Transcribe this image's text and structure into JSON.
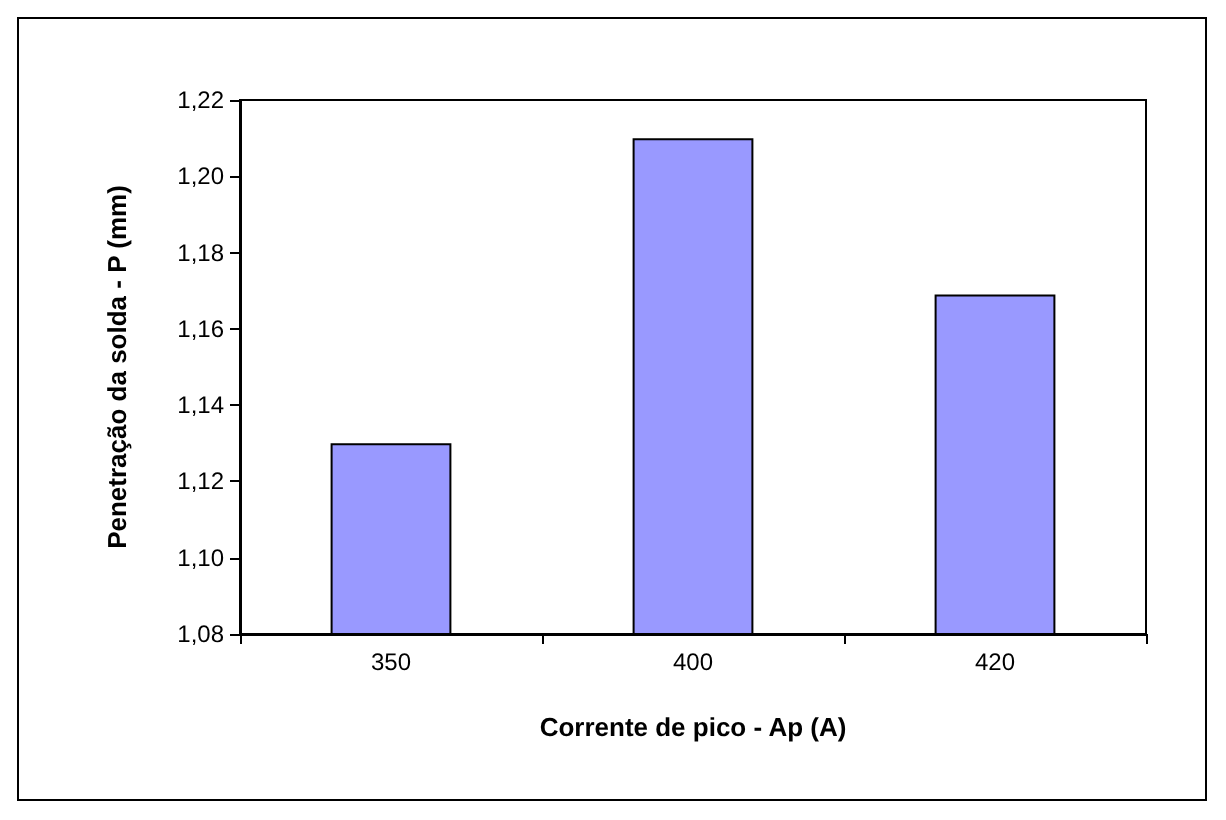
{
  "chart_data": {
    "type": "bar",
    "xlabel": "Corrente de pico - Ap (A)",
    "ylabel": "Penetração da solda - P (mm)",
    "categories": [
      "350",
      "400",
      "420"
    ],
    "values": [
      1.13,
      1.21,
      1.169
    ],
    "color": "#9999ff",
    "ylim": [
      1.08,
      1.22
    ],
    "yticks": [
      {
        "value": 1.08,
        "label": "1,08"
      },
      {
        "value": 1.1,
        "label": "1,10"
      },
      {
        "value": 1.12,
        "label": "1,12"
      },
      {
        "value": 1.14,
        "label": "1,14"
      },
      {
        "value": 1.16,
        "label": "1,16"
      },
      {
        "value": 1.18,
        "label": "1,18"
      },
      {
        "value": 1.2,
        "label": "1,20"
      },
      {
        "value": 1.22,
        "label": "1,22"
      }
    ],
    "grid": false
  }
}
